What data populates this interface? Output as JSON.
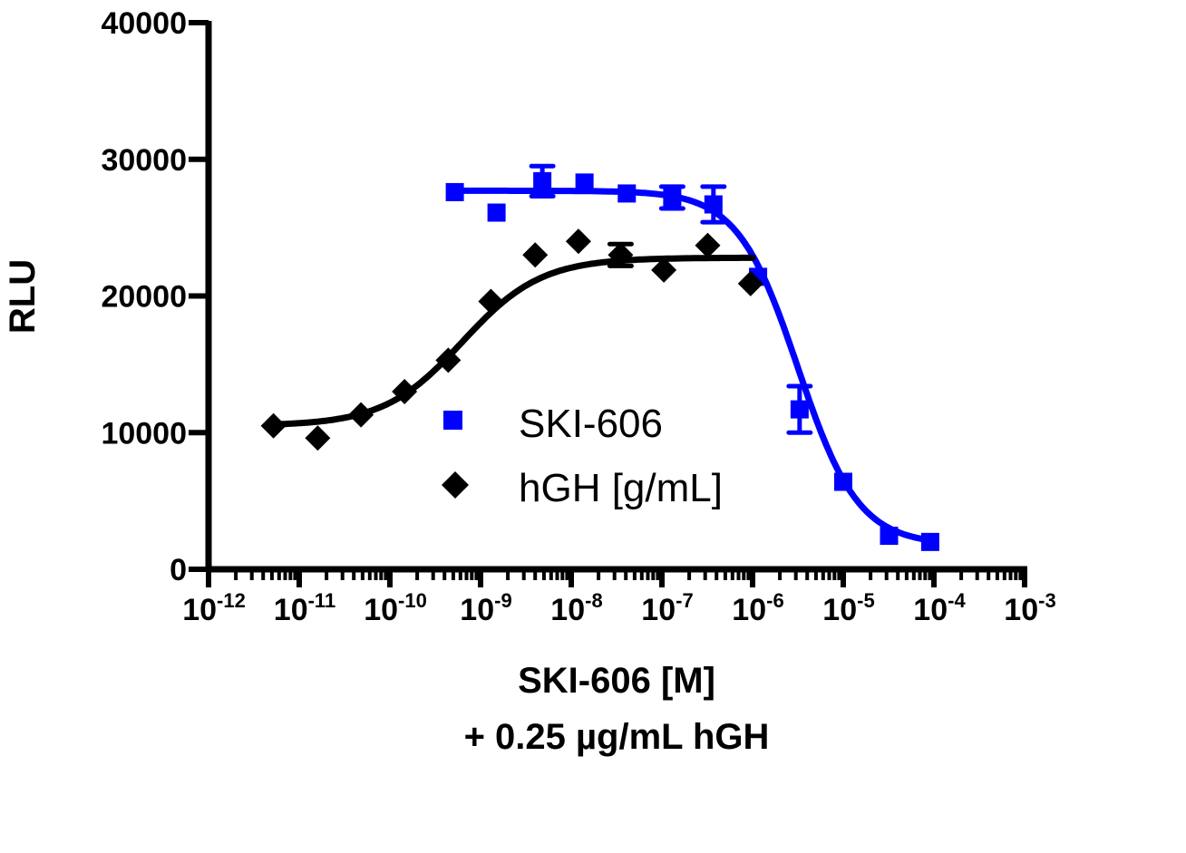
{
  "chart_data": {
    "type": "scatter",
    "title": "",
    "xlabel": "SKI-606 [M]",
    "xlabel_line2": "+ 0.25 µg/mL hGH",
    "ylabel": "RLU",
    "x_scale": "log",
    "xlim": [
      1e-12,
      0.001
    ],
    "ylim": [
      0,
      40000
    ],
    "grid": false,
    "legend_placement": "center",
    "x_ticks": [
      {
        "base": "10",
        "exp": "-12"
      },
      {
        "base": "10",
        "exp": "-11"
      },
      {
        "base": "10",
        "exp": "-10"
      },
      {
        "base": "10",
        "exp": "-9"
      },
      {
        "base": "10",
        "exp": "-8"
      },
      {
        "base": "10",
        "exp": "-7"
      },
      {
        "base": "10",
        "exp": "-6"
      },
      {
        "base": "10",
        "exp": "-5"
      },
      {
        "base": "10",
        "exp": "-4"
      },
      {
        "base": "10",
        "exp": "-3"
      }
    ],
    "y_ticks": [
      "0",
      "10000",
      "20000",
      "30000",
      "40000"
    ],
    "series": [
      {
        "name": "SKI-606",
        "color": "#0000ff",
        "marker": "square",
        "x": [
          5.2e-10,
          1.5e-09,
          4.8e-09,
          1.4e-08,
          4.1e-08,
          1.3e-07,
          3.7e-07,
          1.15e-06,
          3.3e-06,
          1e-05,
          3.2e-05,
          9.1e-05
        ],
        "y": [
          27600,
          26100,
          28400,
          28300,
          27500,
          27200,
          26700,
          21400,
          11700,
          6400,
          2450,
          2000
        ],
        "error": [
          0,
          0,
          1100,
          0,
          0,
          800,
          1300,
          0,
          1700,
          0,
          0,
          0
        ],
        "fit": {
          "top": 27700,
          "bottom": 1800,
          "logEC50": -5.5,
          "hill": -1.3,
          "xrange": [
            5.2e-10,
            0.0001
          ]
        }
      },
      {
        "name": "hGH [g/mL]",
        "color": "#000000",
        "marker": "diamond",
        "x": [
          5.2e-12,
          1.6e-11,
          4.8e-11,
          1.45e-10,
          4.4e-10,
          1.3e-09,
          4e-09,
          1.2e-08,
          3.5e-08,
          1.05e-07,
          3.2e-07,
          9.5e-07
        ],
        "y": [
          10500,
          9600,
          11300,
          13000,
          15300,
          19600,
          23000,
          24000,
          23000,
          21900,
          23700,
          20900
        ],
        "error": [
          0,
          0,
          0,
          0,
          0,
          0,
          0,
          0,
          800,
          0,
          0,
          0
        ],
        "fit": {
          "top": 22800,
          "bottom": 10500,
          "logEC50": -9.2,
          "hill": 1.0,
          "xrange": [
            5.2e-12,
            1e-06
          ]
        }
      }
    ]
  }
}
